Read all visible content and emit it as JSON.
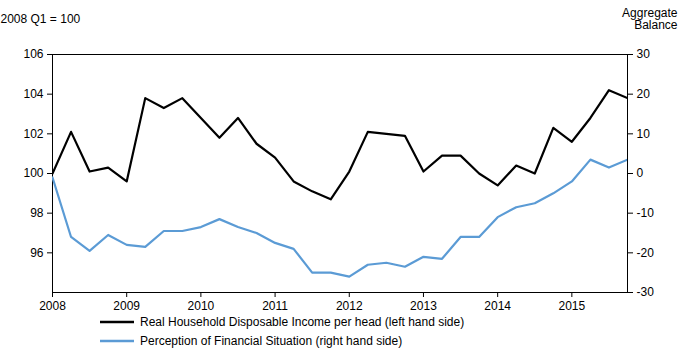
{
  "chart_data": {
    "type": "line",
    "x": [
      2008,
      2008.25,
      2008.5,
      2008.75,
      2009,
      2009.25,
      2009.5,
      2009.75,
      2010,
      2010.25,
      2010.5,
      2010.75,
      2011,
      2011.25,
      2011.5,
      2011.75,
      2012,
      2012.25,
      2012.5,
      2012.75,
      2013,
      2013.25,
      2013.5,
      2013.75,
      2014,
      2014.25,
      2014.5,
      2014.75,
      2015,
      2015.25,
      2015.5,
      2015.75
    ],
    "xlim": [
      2008,
      2015.75
    ],
    "xticks": [
      2008,
      2009,
      2010,
      2011,
      2012,
      2013,
      2014,
      2015
    ],
    "ylabel": "2008 Q1 = 100",
    "ylim": [
      94,
      106
    ],
    "yticks": [
      96,
      98,
      100,
      102,
      104,
      106
    ],
    "y2label": "Aggregate Balance",
    "y2lim": [
      -30,
      30
    ],
    "y2ticks": [
      -30,
      -20,
      -10,
      0,
      10,
      20,
      30
    ],
    "legend": "bottom",
    "series": [
      {
        "name": "Real Household Disposable Income per head (left hand side)",
        "color": "#000000",
        "axis": "y",
        "values": [
          100,
          102.1,
          100.1,
          100.3,
          99.6,
          103.8,
          103.3,
          103.8,
          102.8,
          101.8,
          102.8,
          101.5,
          100.8,
          99.6,
          99.1,
          98.7,
          100.1,
          102.1,
          102.0,
          101.9,
          100.1,
          100.9,
          100.9,
          100.0,
          99.4,
          100.4,
          100.0,
          102.3,
          101.6,
          102.8,
          104.2,
          103.8
        ]
      },
      {
        "name": "Perception of Financial Situation (right hand side)",
        "color": "#5b9bd5",
        "axis": "y2",
        "values": [
          -1,
          -16,
          -19.5,
          -15.5,
          -18,
          -18.5,
          -14.5,
          -14.5,
          -13.5,
          -11.5,
          -13.5,
          -15,
          -17.5,
          -19,
          -25,
          -25,
          -26,
          -23,
          -22.5,
          -23.5,
          -21,
          -21.5,
          -16,
          -16,
          -11,
          -8.5,
          -7.5,
          -5,
          -2,
          3.5,
          1.5,
          3.5
        ]
      }
    ]
  }
}
